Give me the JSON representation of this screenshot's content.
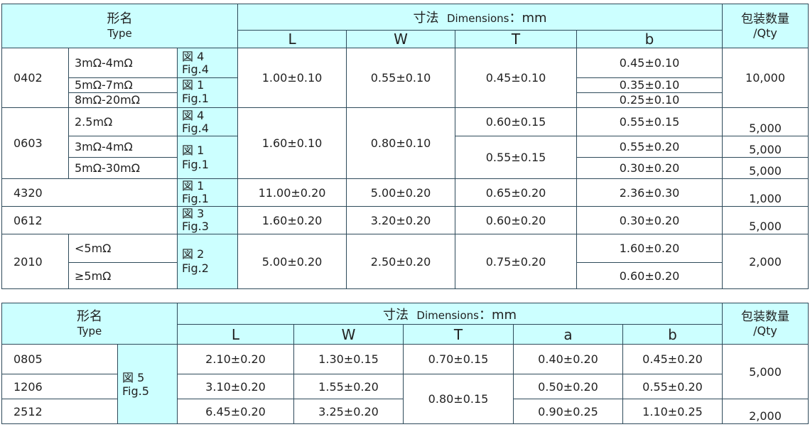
{
  "table1": {
    "header": {
      "type_jp": "形名",
      "type_en": "Type",
      "dim_jp": "寸法",
      "dim_en": "Dimensions",
      "dim_unit": "：mm",
      "col_L": "L",
      "col_W": "W",
      "col_T": "T",
      "col_b": "b",
      "qty_jp": "包装数量",
      "qty_en": "/Qty"
    },
    "rows": {
      "r0402": {
        "type": "0402",
        "res1": "3mΩ-4mΩ",
        "res2": "5mΩ-7mΩ",
        "res3": "8mΩ-20mΩ",
        "fig4_jp": "図 4",
        "fig4_en": "Fig.4",
        "fig1_jp": "図 1",
        "fig1_en": "Fig.1",
        "L": "1.00±0.10",
        "W": "0.55±0.10",
        "T": "0.45±0.10",
        "b1": "0.45±0.10",
        "b2": "0.35±0.10",
        "b3": "0.25±0.10",
        "qty": "10,000"
      },
      "r0603": {
        "type": "0603",
        "res1": "2.5mΩ",
        "res2": "3mΩ-4mΩ",
        "res3": "5mΩ-30mΩ",
        "fig4_jp": "図 4",
        "fig4_en": "Fig.4",
        "fig1_jp": "図 1",
        "fig1_en": "Fig.1",
        "L": "1.60±0.10",
        "W": "0.80±0.10",
        "T1": "0.60±0.15",
        "T2": "0.55±0.15",
        "b1": "0.55±0.15",
        "b2": "0.55±0.20",
        "b3": "0.30±0.20",
        "qty1": "5,000",
        "qty2": "5,000",
        "qty3": "5,000"
      },
      "r4320": {
        "type": "4320",
        "fig_jp": "図 1",
        "fig_en": "Fig.1",
        "L": "11.00±0.20",
        "W": "5.00±0.20",
        "T": "0.65±0.20",
        "b": "2.36±0.30",
        "qty": "1,000"
      },
      "r0612": {
        "type": "0612",
        "fig_jp": "図 3",
        "fig_en": "Fig.3",
        "L": "1.60±0.20",
        "W": "3.20±0.20",
        "T": "0.60±0.20",
        "b": "0.30±0.20",
        "qty": "5,000"
      },
      "r2010": {
        "type": "2010",
        "res1": "<5mΩ",
        "res2": "≥5mΩ",
        "fig_jp": "図 2",
        "fig_en": "Fig.2",
        "L": "5.00±0.20",
        "W": "2.50±0.20",
        "T": "0.75±0.20",
        "b1": "1.60±0.20",
        "b2": "0.60±0.20",
        "qty": "2,000"
      }
    }
  },
  "table2": {
    "header": {
      "type_jp": "形名",
      "type_en": "Type",
      "dim_jp": "寸法",
      "dim_en": "Dimensions",
      "dim_unit": "：mm",
      "col_L": "L",
      "col_W": "W",
      "col_T": "T",
      "col_a": "a",
      "col_b": "b",
      "qty_jp": "包装数量",
      "qty_en": "/Qty"
    },
    "fig_jp": "図 5",
    "fig_en": "Fig.5",
    "rows": {
      "r0805": {
        "type": "0805",
        "L": "2.10±0.20",
        "W": "1.30±0.15",
        "T": "0.70±0.15",
        "a": "0.40±0.20",
        "b": "0.45±0.20"
      },
      "r1206": {
        "type": "1206",
        "L": "3.10±0.20",
        "W": "1.55±0.20",
        "a": "0.50±0.20",
        "b": "0.55±0.20"
      },
      "r2512": {
        "type": "2512",
        "L": "6.45±0.20",
        "W": "3.25±0.20",
        "a": "0.90±0.25",
        "b": "1.10±0.25"
      }
    },
    "T_shared": "0.80±0.15",
    "qty_shared": "5,000",
    "qty_2512": "2,000"
  }
}
